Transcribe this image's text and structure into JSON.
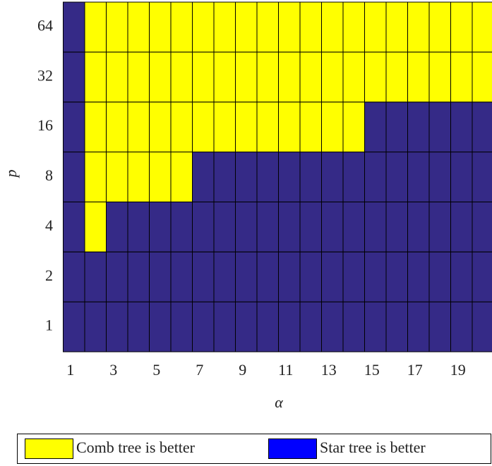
{
  "chart_data": {
    "type": "heatmap",
    "xlabel": "α",
    "ylabel": "p",
    "x": [
      1,
      2,
      3,
      4,
      5,
      6,
      7,
      8,
      9,
      10,
      11,
      12,
      13,
      14,
      15,
      16,
      17,
      18,
      19,
      20
    ],
    "xlim": [
      0.5,
      20.5
    ],
    "xticks": [
      1,
      3,
      5,
      7,
      9,
      11,
      13,
      15,
      17,
      19
    ],
    "y": [
      1,
      2,
      4,
      8,
      16,
      32,
      64
    ],
    "values": [
      [
        0,
        0,
        0,
        0,
        0,
        0,
        0,
        0,
        0,
        0,
        0,
        0,
        0,
        0,
        0,
        0,
        0,
        0,
        0,
        0
      ],
      [
        0,
        0,
        0,
        0,
        0,
        0,
        0,
        0,
        0,
        0,
        0,
        0,
        0,
        0,
        0,
        0,
        0,
        0,
        0,
        0
      ],
      [
        0,
        1,
        0,
        0,
        0,
        0,
        0,
        0,
        0,
        0,
        0,
        0,
        0,
        0,
        0,
        0,
        0,
        0,
        0,
        0
      ],
      [
        0,
        1,
        1,
        1,
        1,
        1,
        0,
        0,
        0,
        0,
        0,
        0,
        0,
        0,
        0,
        0,
        0,
        0,
        0,
        0
      ],
      [
        0,
        1,
        1,
        1,
        1,
        1,
        1,
        1,
        1,
        1,
        1,
        1,
        1,
        1,
        0,
        0,
        0,
        0,
        0,
        0
      ],
      [
        0,
        1,
        1,
        1,
        1,
        1,
        1,
        1,
        1,
        1,
        1,
        1,
        1,
        1,
        1,
        1,
        1,
        1,
        1,
        1
      ],
      [
        0,
        1,
        1,
        1,
        1,
        1,
        1,
        1,
        1,
        1,
        1,
        1,
        1,
        1,
        1,
        1,
        1,
        1,
        1,
        1
      ]
    ],
    "colors": [
      "#352a87",
      "#ffff00"
    ],
    "legend": [
      {
        "name": "Comb tree is better",
        "color": "#ffff00"
      },
      {
        "name": "Star tree is better",
        "color": "#0000ff"
      }
    ]
  }
}
